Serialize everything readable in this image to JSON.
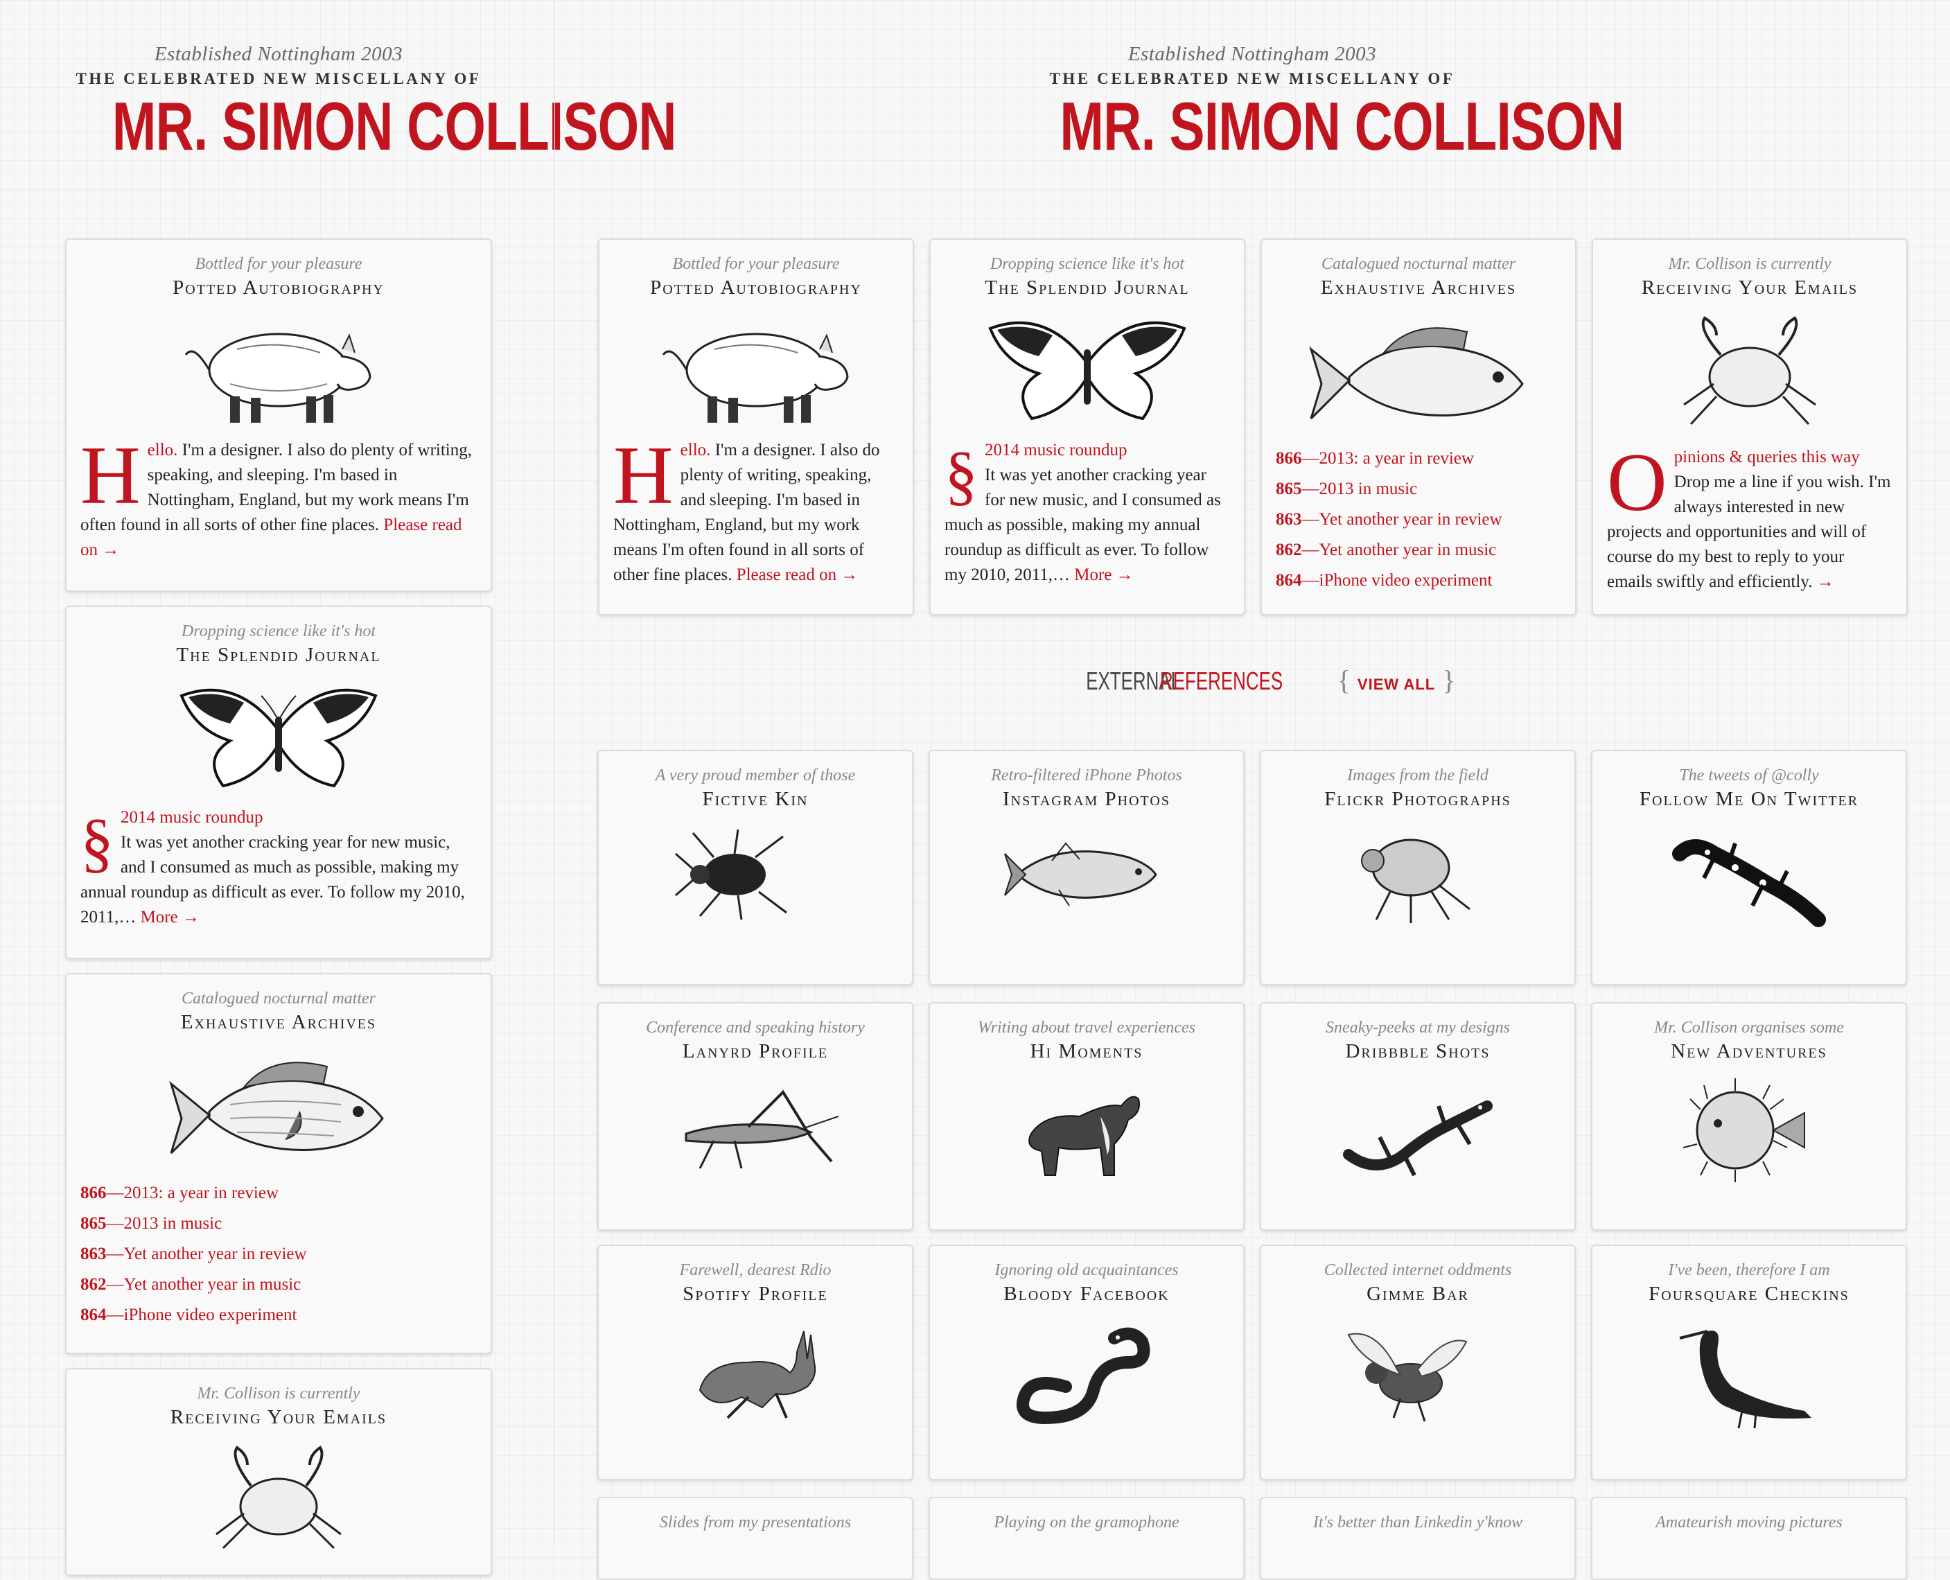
{
  "masthead": {
    "established": "Established Nottingham 2003",
    "celebrated": "THE CELEBRATED NEW MISCELLANY OF",
    "name": "MR. SIMON COLLISON"
  },
  "cards": {
    "autobiography": {
      "subtitle": "Bottled for your pleasure",
      "title": "Potted Autobiography",
      "illustration": "pig",
      "dropcap": "H",
      "lead": "ello.",
      "text": " I'm a designer. I also do plenty of writing, speaking, and sleeping. I'm based in Nottingham, England, but my work means I'm often found in all sorts of other fine places.",
      "link": "Please read on →"
    },
    "journal": {
      "subtitle": "Dropping science like it's hot",
      "title": "The Splendid Journal",
      "illustration": "butterfly",
      "dropcap": "§",
      "post_title": "2014 music roundup",
      "text": "It was yet another cracking year for new music, and I consumed as much as possible, making my annual roundup as difficult as ever. To follow my 2010, 2011,…",
      "link": "More →"
    },
    "archives": {
      "subtitle": "Catalogued nocturnal matter",
      "title": "Exhaustive Archives",
      "illustration": "fish",
      "items": [
        {
          "num": "866",
          "label": "—2013: a year in review"
        },
        {
          "num": "865",
          "label": "—2013 in music"
        },
        {
          "num": "863",
          "label": "—Yet another year in review"
        },
        {
          "num": "862",
          "label": "—Yet another year in music"
        },
        {
          "num": "864",
          "label": "—iPhone video experiment"
        }
      ]
    },
    "emails": {
      "subtitle": "Mr. Collison is currently",
      "title": "Receiving Your Emails",
      "illustration": "crab",
      "dropcap": "O",
      "lead": "pinions & queries this way",
      "text": "Drop me a line if you wish. I'm always interested in new projects and opportunities and will of course do my best to reply to your emails swiftly and efficiently.",
      "link": "→"
    }
  },
  "external": {
    "heading_a": "EXTERNAL",
    "heading_b": "REFERENCES",
    "brace_open": "{",
    "view_all": "VIEW ALL",
    "brace_close": "}",
    "items": [
      {
        "subtitle": "A very proud member of those",
        "title": "Fictive Kin",
        "illustration": "beetle"
      },
      {
        "subtitle": "Retro-filtered iPhone Photos",
        "title": "Instagram Photos",
        "illustration": "tuna"
      },
      {
        "subtitle": "Images from the field",
        "title": "Flickr Photographs",
        "illustration": "flea"
      },
      {
        "subtitle": "The tweets of @colly",
        "title": "Follow Me On Twitter",
        "illustration": "salamander"
      },
      {
        "subtitle": "Conference and speaking history",
        "title": "Lanyrd Profile",
        "illustration": "grasshopper"
      },
      {
        "subtitle": "Writing about travel experiences",
        "title": "Hi Moments",
        "illustration": "collie"
      },
      {
        "subtitle": "Sneaky-peeks at my designs",
        "title": "Dribbble Shots",
        "illustration": "lizard"
      },
      {
        "subtitle": "Mr. Collison organises some",
        "title": "New Adventures",
        "illustration": "pufferfish"
      },
      {
        "subtitle": "Farewell, dearest Rdio",
        "title": "Spotify Profile",
        "illustration": "hare"
      },
      {
        "subtitle": "Ignoring old acquaintances",
        "title": "Bloody Facebook",
        "illustration": "snake"
      },
      {
        "subtitle": "Collected internet oddments",
        "title": "Gimme Bar",
        "illustration": "wasp"
      },
      {
        "subtitle": "I've been, therefore I am",
        "title": "Foursquare Checkins",
        "illustration": "cormorant"
      },
      {
        "subtitle": "Slides from my presentations",
        "title": "",
        "illustration": ""
      },
      {
        "subtitle": "Playing on the gramophone",
        "title": "",
        "illustration": ""
      },
      {
        "subtitle": "It's better than Linkedin y'know",
        "title": "",
        "illustration": ""
      },
      {
        "subtitle": "Amateurish moving pictures",
        "title": "",
        "illustration": ""
      }
    ]
  },
  "colors": {
    "accent": "#c0141e",
    "text": "#222222",
    "muted": "#888888"
  }
}
